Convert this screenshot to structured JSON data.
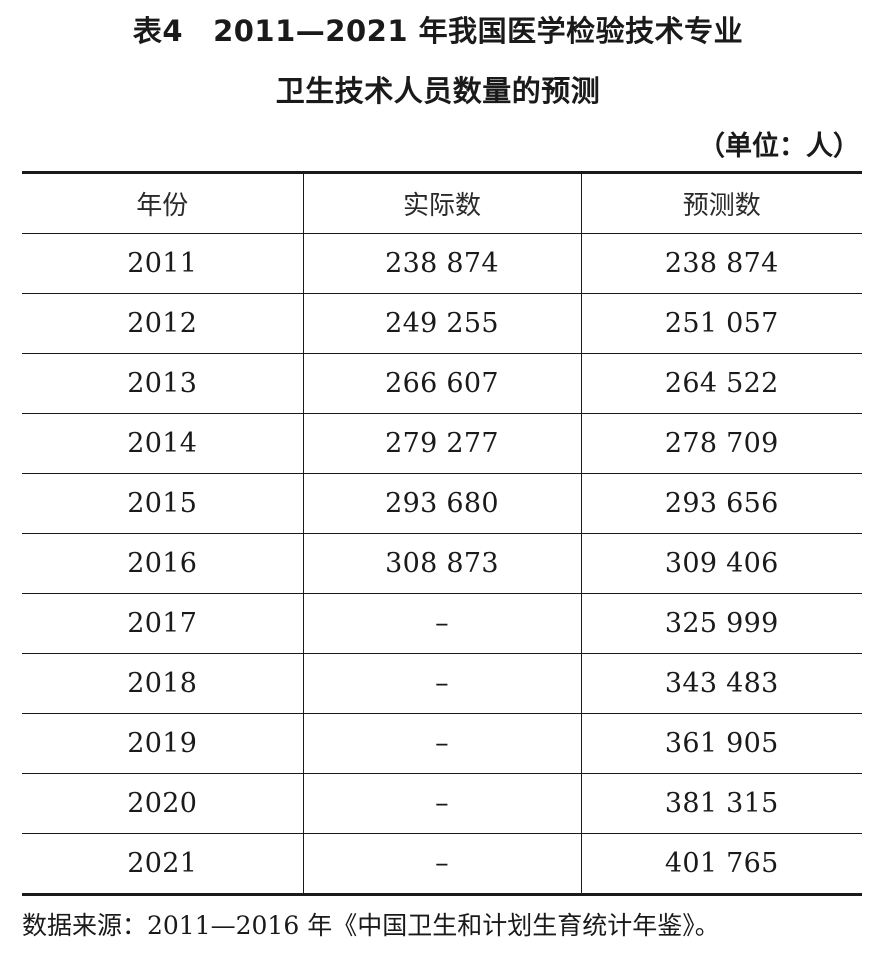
{
  "title": {
    "table_number": "表4",
    "line1": "2011—2021 年我国医学检验技术专业",
    "line2": "卫生技术人员数量的预测"
  },
  "unit": "（单位：人）",
  "table": {
    "headers": [
      "年份",
      "实际数",
      "预测数"
    ],
    "rows": [
      [
        "2011",
        "238 874",
        "238 874"
      ],
      [
        "2012",
        "249 255",
        "251 057"
      ],
      [
        "2013",
        "266 607",
        "264 522"
      ],
      [
        "2014",
        "279 277",
        "278 709"
      ],
      [
        "2015",
        "293 680",
        "293 656"
      ],
      [
        "2016",
        "308 873",
        "309 406"
      ],
      [
        "2017",
        "–",
        "325 999"
      ],
      [
        "2018",
        "–",
        "343 483"
      ],
      [
        "2019",
        "–",
        "361 905"
      ],
      [
        "2020",
        "–",
        "381 315"
      ],
      [
        "2021",
        "–",
        "401 765"
      ]
    ]
  },
  "source": "数据来源：2011—2016 年《中国卫生和计划生育统计年鉴》。"
}
